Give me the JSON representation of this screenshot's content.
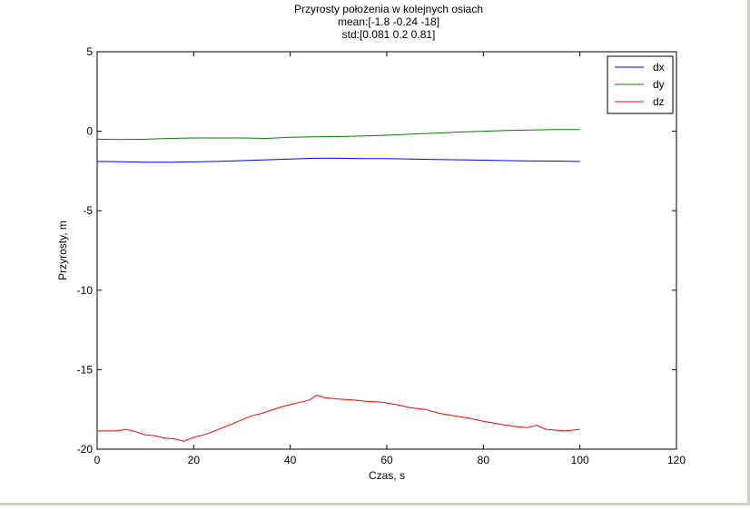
{
  "chart_data": {
    "type": "line",
    "title": "Przyrosty położenia w kolejnych osiach",
    "subtitle_mean": "mean:[-1.8 -0.24 -18]",
    "subtitle_std": "std:[0.081 0.2 0.81]",
    "xlabel": "Czas, s",
    "ylabel": "Przyrosty, m",
    "xlim": [
      0,
      120
    ],
    "ylim": [
      -20,
      5
    ],
    "xticks": [
      0,
      20,
      40,
      60,
      80,
      100,
      120
    ],
    "yticks": [
      -20,
      -15,
      -10,
      -5,
      0,
      5
    ],
    "grid": false,
    "legend_position": "top-right",
    "series": [
      {
        "name": "dx",
        "color": "#0000ff",
        "x": [
          0,
          5,
          10,
          15,
          20,
          25,
          30,
          35,
          40,
          45,
          50,
          55,
          60,
          65,
          70,
          75,
          80,
          85,
          90,
          95,
          100
        ],
        "y": [
          -1.9,
          -1.92,
          -1.95,
          -1.95,
          -1.93,
          -1.9,
          -1.85,
          -1.8,
          -1.75,
          -1.7,
          -1.7,
          -1.72,
          -1.72,
          -1.75,
          -1.78,
          -1.8,
          -1.82,
          -1.85,
          -1.87,
          -1.88,
          -1.9
        ]
      },
      {
        "name": "dy",
        "color": "#008000",
        "x": [
          0,
          5,
          10,
          15,
          20,
          25,
          30,
          35,
          40,
          45,
          50,
          55,
          60,
          65,
          70,
          75,
          80,
          85,
          90,
          95,
          100
        ],
        "y": [
          -0.5,
          -0.52,
          -0.5,
          -0.45,
          -0.42,
          -0.42,
          -0.42,
          -0.45,
          -0.38,
          -0.35,
          -0.33,
          -0.3,
          -0.25,
          -0.18,
          -0.12,
          -0.05,
          0.0,
          0.05,
          0.08,
          0.1,
          0.1
        ]
      },
      {
        "name": "dz",
        "color": "#ff0000",
        "x": [
          0,
          2,
          4,
          6,
          8,
          10,
          12,
          14,
          16,
          18,
          20,
          22,
          24,
          26,
          28,
          30,
          32,
          34,
          36,
          38,
          40,
          42,
          44,
          45.5,
          47,
          50,
          53,
          56,
          59,
          62,
          65,
          68,
          71,
          74,
          77,
          80,
          83,
          86,
          89,
          91,
          93,
          95,
          97,
          100
        ],
        "y": [
          -18.85,
          -18.85,
          -18.85,
          -18.75,
          -18.9,
          -19.1,
          -19.15,
          -19.3,
          -19.35,
          -19.5,
          -19.25,
          -19.1,
          -18.9,
          -18.65,
          -18.4,
          -18.15,
          -17.9,
          -17.75,
          -17.55,
          -17.35,
          -17.2,
          -17.05,
          -16.9,
          -16.6,
          -16.75,
          -16.85,
          -16.9,
          -17.0,
          -17.05,
          -17.2,
          -17.4,
          -17.5,
          -17.75,
          -17.9,
          -18.05,
          -18.25,
          -18.4,
          -18.55,
          -18.65,
          -18.5,
          -18.75,
          -18.8,
          -18.85,
          -18.75
        ]
      }
    ]
  }
}
